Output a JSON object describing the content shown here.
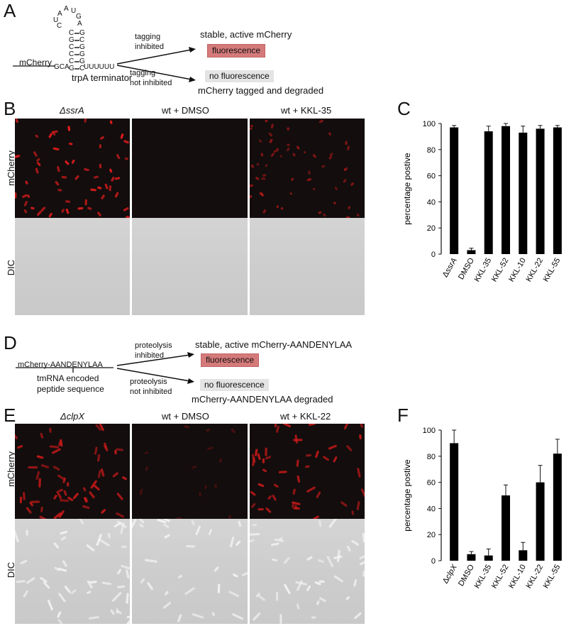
{
  "panels": {
    "A": "A",
    "B": "B",
    "C": "C",
    "D": "D",
    "E": "E",
    "F": "F"
  },
  "panelA": {
    "hairpin_loop": "A A U G",
    "hairpin_loop_letters": [
      "A",
      "A",
      "U",
      "G",
      "U",
      "C",
      "A"
    ],
    "stem_left": [
      "C",
      "G",
      "C",
      "C",
      "C",
      "G"
    ],
    "stem_right": [
      "G",
      "C",
      "G",
      "G",
      "G",
      "C"
    ],
    "gene": "mCherry",
    "gca": "GCA",
    "uuuuuu": "UUUUUU",
    "terminator": "trpA terminator",
    "upper_condition": "tagging\ninhibited",
    "upper_condition_l1": "tagging",
    "upper_condition_l2": "inhibited",
    "upper_result": "stable, active mCherry",
    "upper_box": "fluorescence",
    "lower_condition_l1": "tagging",
    "lower_condition_l2": "not inhibited",
    "lower_box": "no fluorescence",
    "lower_result": "mCherry tagged and degraded"
  },
  "panelB": {
    "col1": "ΔssrA",
    "col2": "wt + DMSO",
    "col3": "wt + KKL-35",
    "row1": "mCherry",
    "row2": "DIC"
  },
  "panelD": {
    "upper_condition_l1": "proteolysis",
    "upper_condition_l2": "inhibited",
    "upper_result": "stable, active mCherry-AANDENYLAA",
    "upper_box": "fluorescence",
    "gene": "mCherry-AANDENYLAA",
    "lower_condition_l1": "proteolysis",
    "lower_condition_l2": "not inhibited",
    "lower_box": "no fluorescence",
    "lower_result": "mCherry-AANDENYLAA degraded",
    "note_l1": "tmRNA encoded",
    "note_l2": "peptide sequence"
  },
  "panelE": {
    "col1": "ΔclpX",
    "col2": "wt + DMSO",
    "col3": "wt + KKL-22",
    "row1": "mCherry",
    "row2": "DIC"
  },
  "chart_data": [
    {
      "panel": "C",
      "type": "bar",
      "categories": [
        "ΔssrA",
        "DMSO",
        "KKL-35",
        "KKL-52",
        "KKL-10",
        "KKL-22",
        "KKL-55"
      ],
      "values": [
        97,
        3,
        94,
        98,
        93,
        96,
        97
      ],
      "errors": [
        1.5,
        1.5,
        4,
        2,
        5,
        2.5,
        1.5
      ],
      "ylabel": "percentage postive",
      "ylim": [
        0,
        100
      ],
      "yticks": [
        0,
        20,
        40,
        60,
        80,
        100
      ],
      "bar_color": "#000000"
    },
    {
      "panel": "F",
      "type": "bar",
      "categories": [
        "ΔclpX",
        "DMSO",
        "KKL-35",
        "KKL-52",
        "KKL-10",
        "KKL-22",
        "KKL-55"
      ],
      "values": [
        90,
        5,
        4,
        50,
        8,
        60,
        82
      ],
      "errors": [
        10,
        2,
        5,
        8,
        6,
        13,
        11
      ],
      "ylabel": "percentage postive",
      "ylim": [
        0,
        100
      ],
      "yticks": [
        0,
        20,
        40,
        60,
        80,
        100
      ],
      "bar_color": "#000000"
    }
  ],
  "colors": {
    "fluorescence_box": "#d57a7a",
    "no_fluorescence_box": "#e4e4e4",
    "mcherry_background": "#130d0d",
    "mcherry_cell": "#d81a1a",
    "dic_background": "#cfcfcf"
  }
}
